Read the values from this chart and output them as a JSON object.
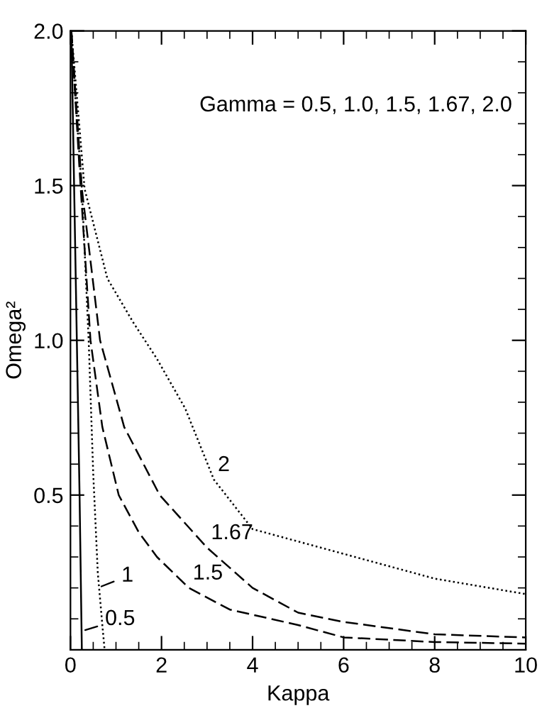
{
  "chart_data": {
    "type": "line",
    "xlabel": "Kappa",
    "ylabel": "Omega²",
    "xlim": [
      0,
      10
    ],
    "ylim": [
      0,
      2.0
    ],
    "xticks": [
      0,
      2,
      4,
      6,
      8,
      10
    ],
    "yticks": [
      {
        "value": 0.5,
        "label": "0.5"
      },
      {
        "value": 1.0,
        "label": "1.0"
      },
      {
        "value": 1.5,
        "label": "1.5"
      },
      {
        "value": 2.0,
        "label": "2.0"
      }
    ],
    "grid": false,
    "marker": "none",
    "series": [
      {
        "color": "#000000",
        "line_style": "solid",
        "x": [
          0.02,
          0.08,
          0.14,
          0.2,
          0.25
        ],
        "values": [
          2.0,
          1.5,
          1.0,
          0.5,
          0.0
        ]
      },
      {
        "color": "#000000",
        "line_style": "dotted",
        "x": [
          0.02,
          0.1,
          0.25,
          0.4,
          0.5,
          0.6,
          0.7,
          0.75
        ],
        "values": [
          2.0,
          1.8,
          1.49,
          1.0,
          0.57,
          0.25,
          0.08,
          0.0
        ]
      },
      {
        "color": "#000000",
        "line_style": "dashed",
        "x": [
          0.02,
          0.2,
          0.44,
          0.7,
          1.06,
          1.5,
          1.9,
          2.6,
          3.5,
          5.0,
          6.0,
          8.0,
          10.0
        ],
        "values": [
          2.0,
          1.55,
          1.0,
          0.72,
          0.5,
          0.38,
          0.3,
          0.2,
          0.13,
          0.08,
          0.04,
          0.025,
          0.02
        ]
      },
      {
        "color": "#000000",
        "line_style": "dashed",
        "x": [
          0.02,
          0.25,
          0.65,
          1.18,
          1.96,
          3.0,
          4.0,
          5.0,
          6.0,
          8.0,
          10.0
        ],
        "values": [
          2.0,
          1.49,
          1.0,
          0.72,
          0.5,
          0.33,
          0.2,
          0.12,
          0.09,
          0.05,
          0.04
        ]
      },
      {
        "color": "#000000",
        "line_style": "dotted",
        "x": [
          0.02,
          0.31,
          0.81,
          1.37,
          1.9,
          2.52,
          3.15,
          4.0,
          6.0,
          8.0,
          10.0
        ],
        "values": [
          2.0,
          1.49,
          1.2,
          1.06,
          0.94,
          0.78,
          0.55,
          0.39,
          0.31,
          0.23,
          0.18
        ]
      }
    ],
    "annotations": [
      "Gamma = 0.5, 1.0, 1.5, 1.67, 2.0",
      {
        "text": "0.5",
        "x": 0.24,
        "y": 0.06
      },
      {
        "text": "1",
        "x": 0.6,
        "y": 0.2
      },
      {
        "text": "1.5",
        "x": 2.6,
        "y": 0.2
      },
      {
        "text": "1.67",
        "x": 3.0,
        "y": 0.33
      },
      {
        "text": "2",
        "x": 3.15,
        "y": 0.55
      }
    ]
  }
}
